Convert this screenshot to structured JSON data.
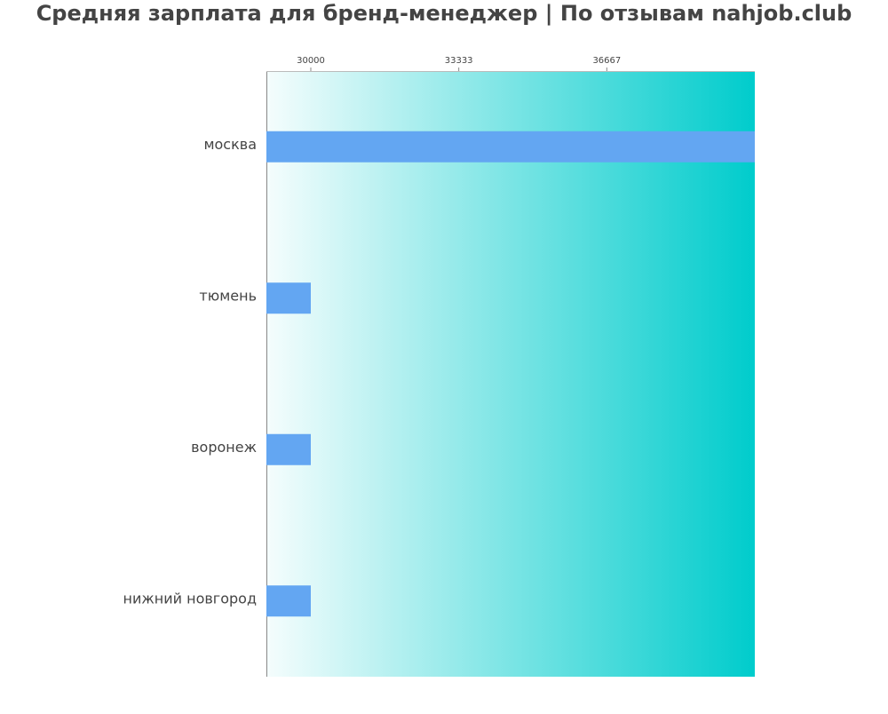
{
  "chart_data": {
    "type": "bar",
    "orientation": "horizontal",
    "title": "Средняя зарплата для бренд-менеджер | По отзывам nahjob.club",
    "categories": [
      "москва",
      "тюмень",
      "воронеж",
      "нижний новгород"
    ],
    "values": [
      40000,
      30000,
      30000,
      30000
    ],
    "color": "#63a6f2",
    "xlim": [
      29000,
      40000
    ],
    "xticks": [
      30000,
      33333,
      36667
    ]
  }
}
